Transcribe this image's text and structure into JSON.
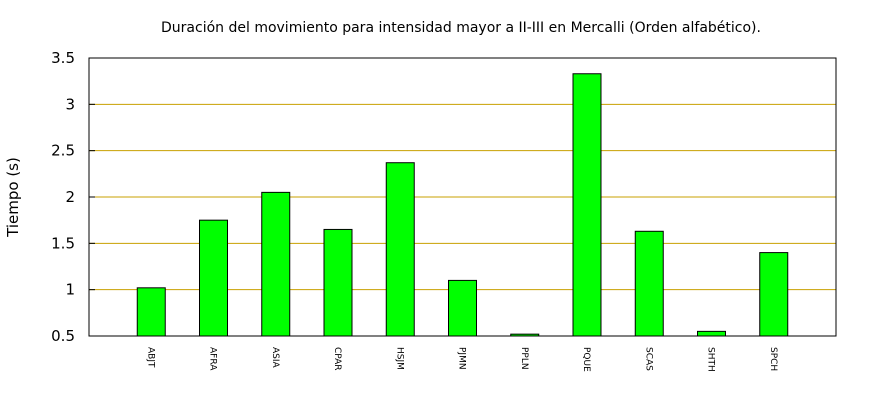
{
  "chart_data": {
    "type": "bar",
    "title": "Duración del movimiento para intensidad mayor a II-III en Mercalli (Orden alfabético).",
    "xlabel": "",
    "ylabel": "Tiempo (s)",
    "ylim": [
      0.5,
      3.5
    ],
    "yticks": [
      "0.5",
      "1",
      "1.5",
      "2",
      "2.5",
      "3",
      "3.5"
    ],
    "grid": "horizontal",
    "categories": [
      "ABJT",
      "AFRA",
      "ASIA",
      "CPAR",
      "HSJM",
      "PJMN",
      "PPLN",
      "PQUE",
      "SCAS",
      "SHTH",
      "SPCH"
    ],
    "values": [
      1.02,
      1.75,
      2.05,
      1.65,
      2.37,
      1.1,
      0.52,
      3.33,
      1.63,
      0.55,
      1.4
    ],
    "colors": {
      "bar": "#00ff00",
      "bar_edge": "#000000",
      "grid": "#c8a000",
      "frame": "#000000"
    }
  }
}
